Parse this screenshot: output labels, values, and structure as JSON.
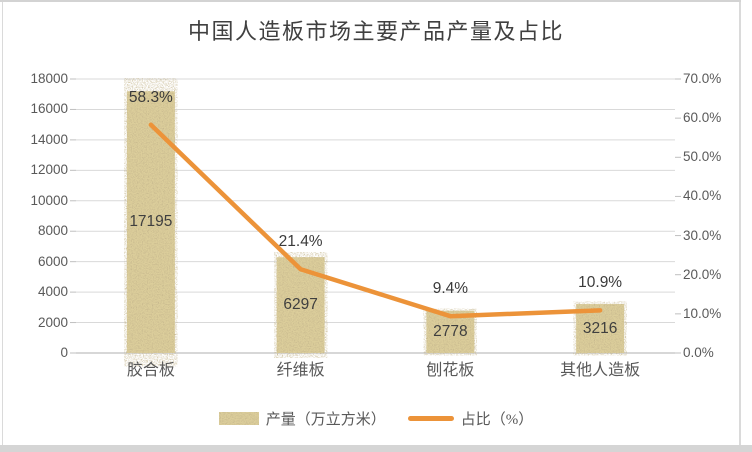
{
  "title": "中国人造板市场主要产品产量及占比",
  "chart_data": {
    "type": "bar",
    "subtype": "bar-line-combo",
    "categories": [
      "胶合板",
      "纤维板",
      "刨花板",
      "其他人造板"
    ],
    "series": [
      {
        "name": "产量（万立方米）",
        "type": "bar",
        "axis": "left",
        "values": [
          17195,
          6297,
          2778,
          3216
        ],
        "labels": [
          "17195",
          "6297",
          "2778",
          "3216"
        ],
        "swatch": "sand-textured-bar",
        "color": "#dcce9b"
      },
      {
        "name": "占比（%）",
        "type": "line",
        "axis": "right",
        "values": [
          58.3,
          21.4,
          9.4,
          10.9
        ],
        "labels": [
          "58.3%",
          "21.4%",
          "9.4%",
          "10.9%"
        ],
        "swatch": "orange-line",
        "color": "#ec9339"
      }
    ],
    "left_axis": {
      "min": 0,
      "max": 18000,
      "step": 2000,
      "ticks": [
        "0",
        "2000",
        "4000",
        "6000",
        "8000",
        "10000",
        "12000",
        "14000",
        "16000",
        "18000"
      ]
    },
    "right_axis": {
      "min": 0,
      "max": 70,
      "step": 10,
      "ticks": [
        "0.0%",
        "10.0%",
        "20.0%",
        "30.0%",
        "40.0%",
        "50.0%",
        "60.0%",
        "70.0%"
      ]
    },
    "grid": true,
    "legend_position": "bottom"
  },
  "colors": {
    "line": "#ec9339",
    "bar_base": "#dcce9b",
    "bar_speckle": "#8c7542",
    "grid": "#d9d9d9",
    "axis": "#bfbfbf",
    "title_text": "#404040",
    "label_text": "#3f3f3f",
    "tick_text": "#595959"
  }
}
